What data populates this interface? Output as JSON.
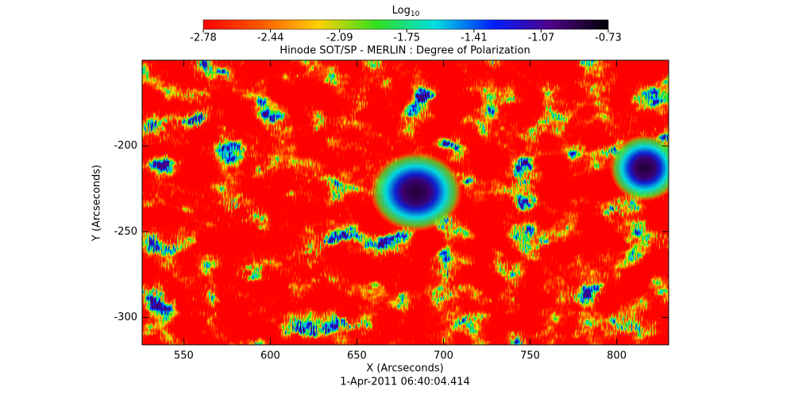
{
  "chart_data": {
    "type": "image",
    "title": "Hinode SOT/SP - MERLIN : Degree of Polarization",
    "subtitle": "1-Apr-2011 06:40:04.414",
    "x_label": "X (Arcseconds)",
    "y_label": "Y (Arcseconds)",
    "colorbar_label": {
      "text": "Log",
      "subscript": "10"
    },
    "colormap": [
      "#ff0000",
      "#ff5a00",
      "#ffd200",
      "#30e020",
      "#00e0e0",
      "#0020ff",
      "#50008a",
      "#000000"
    ],
    "clim": [
      -2.78,
      -0.73
    ],
    "cticks": [
      -2.78,
      -2.44,
      -2.09,
      -1.75,
      -1.41,
      -1.07,
      -0.73
    ],
    "xlim": [
      526,
      830
    ],
    "xticks": [
      550,
      600,
      650,
      700,
      750,
      800
    ],
    "ylim": [
      -316,
      -150
    ],
    "yticks": [
      -200,
      -250,
      -300
    ]
  }
}
